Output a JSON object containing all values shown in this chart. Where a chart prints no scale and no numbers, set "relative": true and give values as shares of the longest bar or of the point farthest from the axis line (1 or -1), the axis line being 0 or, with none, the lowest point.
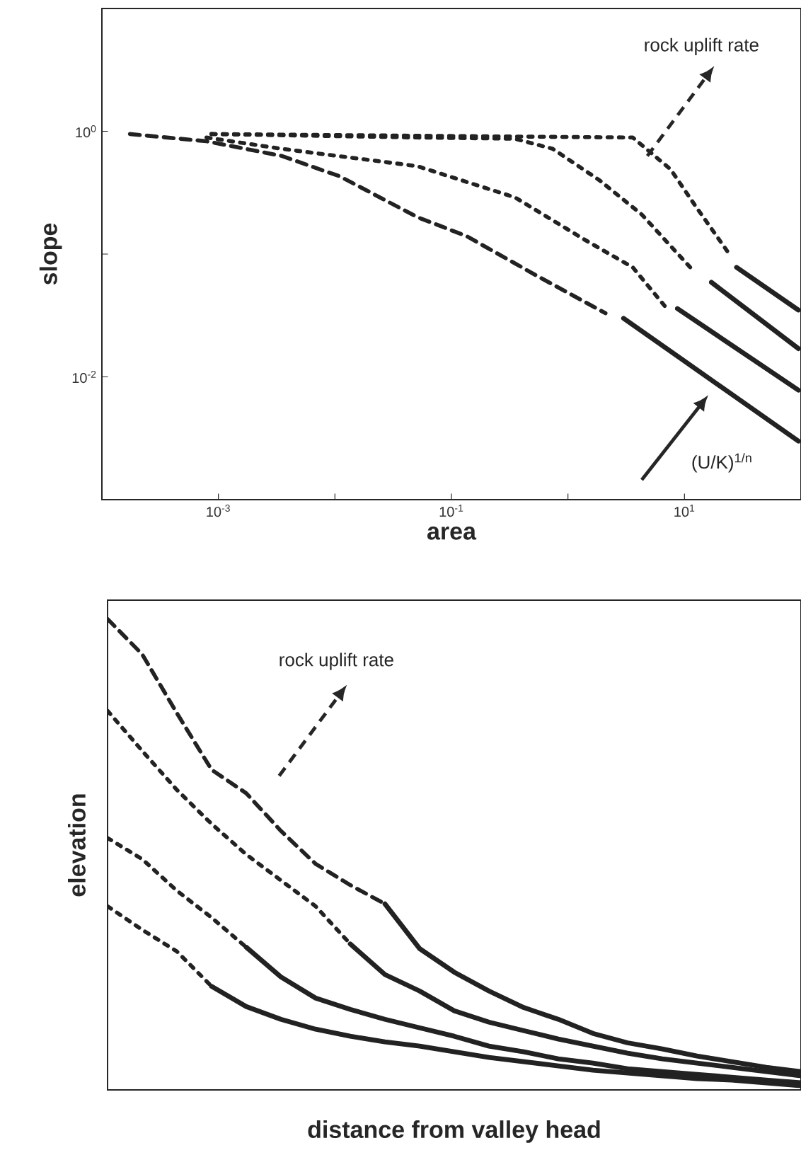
{
  "chart_data": [
    {
      "type": "line",
      "log": "xy",
      "xlabel": "area",
      "ylabel": "slope",
      "xlim": [
        0.0001,
        100
      ],
      "ylim": [
        0.001,
        10
      ],
      "xticks": [
        {
          "value": 0.0001,
          "label": null
        },
        {
          "value": 0.001,
          "label": "10$^{-3}$"
        },
        {
          "value": 0.01,
          "label": null
        },
        {
          "value": 0.1,
          "label": "10$^{-1}$"
        },
        {
          "value": 1,
          "label": null
        },
        {
          "value": 10,
          "label": "10$^{1}$"
        },
        {
          "value": 100,
          "label": null
        }
      ],
      "yticks": [
        {
          "value": 0.001,
          "label": null
        },
        {
          "value": 0.01,
          "label": "10$^{-2}$"
        },
        {
          "value": 0.1,
          "label": null
        },
        {
          "value": 1,
          "label": "10$^{0}$"
        },
        {
          "value": 10,
          "label": null
        }
      ],
      "annotations": [
        {
          "text": "rock uplift rate",
          "x": 4.8,
          "y": 0.63
        },
        "(U/K)$^{1/n}$"
      ],
      "series": [
        {
          "color": "#222222",
          "line_style": "dashed",
          "x": [
            0.000174,
            0.00079,
            0.0035,
            0.011,
            0.051,
            0.135,
            0.55,
            2.1
          ],
          "values": [
            0.95,
            0.83,
            0.63,
            0.43,
            0.2,
            0.14,
            0.066,
            0.033
          ]
        },
        {
          "color": "#222222",
          "line_style": "solid",
          "x": [
            3.0,
            95
          ],
          "values": [
            0.03,
            0.003
          ]
        },
        {
          "color": "#222222",
          "line_style": "dotted",
          "x": [
            0.00079,
            0.0035,
            0.051,
            0.35,
            1.41,
            3.6,
            6.9
          ],
          "values": [
            0.89,
            0.72,
            0.52,
            0.29,
            0.13,
            0.078,
            0.037
          ]
        },
        {
          "color": "#222222",
          "line_style": "solid",
          "x": [
            8.7,
            95
          ],
          "values": [
            0.036,
            0.0078
          ]
        },
        {
          "color": "#222222",
          "line_style": "dotted",
          "x": [
            0.00087,
            0.051,
            0.35,
            0.74,
            1.86,
            4.3,
            11.2
          ],
          "values": [
            0.95,
            0.89,
            0.87,
            0.72,
            0.4,
            0.21,
            0.078
          ]
        },
        {
          "color": "#222222",
          "line_style": "solid",
          "x": [
            17,
            95
          ],
          "values": [
            0.059,
            0.017
          ]
        },
        {
          "color": "#222222",
          "line_style": "dotted",
          "x": [
            0.00087,
            3.6,
            7.6,
            12.3,
            23.4
          ],
          "values": [
            0.95,
            0.89,
            0.49,
            0.25,
            0.105
          ]
        },
        {
          "color": "#222222",
          "line_style": "solid",
          "x": [
            28,
            95
          ],
          "values": [
            0.078,
            0.035
          ]
        }
      ]
    },
    {
      "type": "line",
      "relative": true,
      "xlabel": "distance from valley head",
      "ylabel": "elevation",
      "categories": [
        null,
        null,
        null,
        null,
        null,
        null,
        null,
        null,
        null,
        null,
        null,
        null,
        null,
        null,
        null,
        null,
        null,
        null,
        null,
        null,
        null
      ],
      "annotations": [
        "rock uplift rate"
      ],
      "series": [
        {
          "color": "#222222",
          "line_style": "dashed",
          "values": [
            1,
            0.925,
            0.8,
            0.68,
            0.63,
            0.55,
            0.48,
            0.435,
            0.395,
            null,
            null,
            null,
            null,
            null,
            null,
            null,
            null,
            null,
            null,
            null,
            null
          ]
        },
        {
          "color": "#222222",
          "line_style": "solid",
          "values": [
            null,
            null,
            null,
            null,
            null,
            null,
            null,
            null,
            0.395,
            0.3,
            0.25,
            0.21,
            0.175,
            0.15,
            0.12,
            0.1,
            0.087,
            0.072,
            0.06,
            0.048,
            0.039
          ]
        },
        {
          "color": "#222222",
          "line_style": "dotted",
          "values": [
            0.805,
            0.72,
            0.637,
            0.565,
            0.5,
            0.445,
            0.39,
            0.31,
            null,
            null,
            null,
            null,
            null,
            null,
            null,
            null,
            null,
            null,
            null,
            null,
            null
          ]
        },
        {
          "color": "#222222",
          "line_style": "solid",
          "values": [
            null,
            null,
            null,
            null,
            null,
            null,
            null,
            0.31,
            0.245,
            0.21,
            0.168,
            0.144,
            0.126,
            0.108,
            0.093,
            0.078,
            0.066,
            0.057,
            0.048,
            0.039,
            0.03
          ]
        },
        {
          "color": "#222222",
          "line_style": "dotted",
          "values": [
            0.535,
            0.49,
            0.423,
            0.366,
            0.303,
            null,
            null,
            null,
            null,
            null,
            null,
            null,
            null,
            null,
            null,
            null,
            null,
            null,
            null,
            null,
            null
          ]
        },
        {
          "color": "#222222",
          "line_style": "solid",
          "values": [
            null,
            null,
            null,
            null,
            0.303,
            0.24,
            0.195,
            0.171,
            0.15,
            0.132,
            0.114,
            0.093,
            0.081,
            0.066,
            0.057,
            0.045,
            0.039,
            0.033,
            0.027,
            0.021,
            0.015
          ]
        },
        {
          "color": "#222222",
          "line_style": "dotted",
          "values": [
            0.39,
            0.34,
            0.294,
            0.22,
            null,
            null,
            null,
            null,
            null,
            null,
            null,
            null,
            null,
            null,
            null,
            null,
            null,
            null,
            null,
            null,
            null
          ]
        },
        {
          "color": "#222222",
          "line_style": "solid",
          "values": [
            null,
            null,
            null,
            0.22,
            0.177,
            0.15,
            0.129,
            0.114,
            0.102,
            0.093,
            0.081,
            0.069,
            0.06,
            0.051,
            0.042,
            0.036,
            0.03,
            0.024,
            0.021,
            0.015,
            0.009
          ]
        }
      ]
    }
  ]
}
